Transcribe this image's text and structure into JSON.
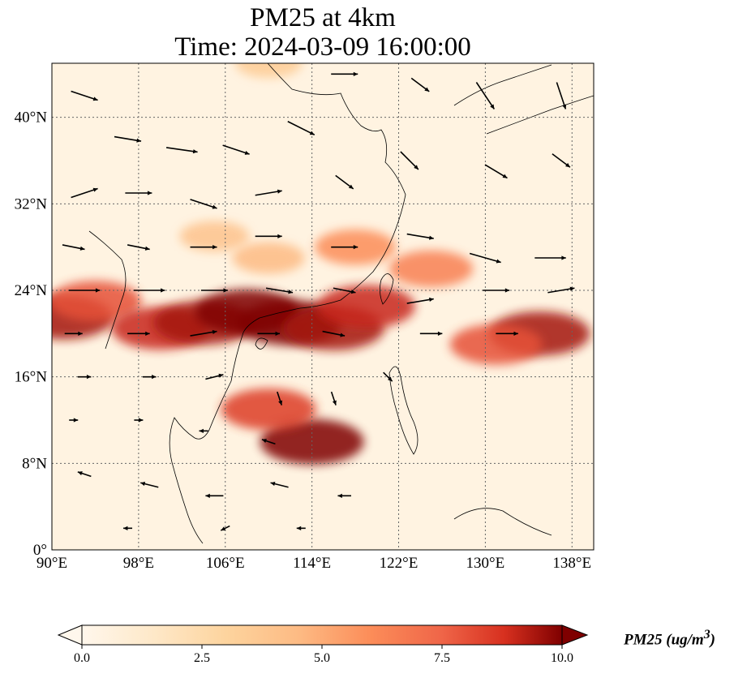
{
  "title": {
    "line1": "PM25 at 4km",
    "line2": "Time: 2024-03-09 16:00:00"
  },
  "map": {
    "lon_range": [
      90,
      140
    ],
    "lat_range": [
      0,
      45
    ],
    "gridlines": true,
    "lon_ticks": [
      {
        "value": 90,
        "label": "90°E"
      },
      {
        "value": 98,
        "label": "98°E"
      },
      {
        "value": 106,
        "label": "106°E"
      },
      {
        "value": 114,
        "label": "114°E"
      },
      {
        "value": 122,
        "label": "122°E"
      },
      {
        "value": 130,
        "label": "130°E"
      },
      {
        "value": 138,
        "label": "138°E"
      }
    ],
    "lat_ticks": [
      {
        "value": 0,
        "label": "0°"
      },
      {
        "value": 8,
        "label": "8°N"
      },
      {
        "value": 16,
        "label": "16°N"
      },
      {
        "value": 24,
        "label": "24°N"
      },
      {
        "value": 32,
        "label": "32°N"
      },
      {
        "value": 40,
        "label": "40°N"
      }
    ]
  },
  "colorbar": {
    "colormap": "OrRd",
    "range": [
      0,
      10
    ],
    "extend": "both",
    "orientation": "horizontal",
    "ticks": [
      {
        "value": 0,
        "label": "0.0"
      },
      {
        "value": 2.5,
        "label": "2.5"
      },
      {
        "value": 5,
        "label": "5.0"
      },
      {
        "value": 7.5,
        "label": "7.5"
      },
      {
        "value": 10,
        "label": "10.0"
      }
    ],
    "label_prefix": "PM25 (ug/m",
    "label_exponent": "3",
    "label_suffix": ")"
  },
  "colors": {
    "low": "#fff7ec",
    "mid_low": "#fdd49e",
    "mid": "#fc8d59",
    "high": "#d7301f",
    "max": "#7f0000",
    "grid": "#666666",
    "coast": "#000000",
    "wind": "#000000"
  },
  "chart_data": {
    "type": "heatmap",
    "variable": "PM25",
    "level": "4km",
    "time": "2024-03-09 16:00:00",
    "units": "ug/m3",
    "value_range": [
      0,
      10
    ],
    "plumes": [
      {
        "lon": 91,
        "lat": 21.5,
        "value": 9.5
      },
      {
        "lon": 94,
        "lat": 23,
        "value": 8.0
      },
      {
        "lon": 100,
        "lat": 20.5,
        "value": 9.0
      },
      {
        "lon": 104,
        "lat": 21,
        "value": 9.5
      },
      {
        "lon": 108,
        "lat": 22,
        "value": 10.0
      },
      {
        "lon": 112,
        "lat": 21,
        "value": 10.0
      },
      {
        "lon": 116,
        "lat": 20.5,
        "value": 9.5
      },
      {
        "lon": 119,
        "lat": 22.5,
        "value": 9.0
      },
      {
        "lon": 114,
        "lat": 10,
        "value": 10.0
      },
      {
        "lon": 110,
        "lat": 13,
        "value": 8.5
      },
      {
        "lon": 135,
        "lat": 20,
        "value": 9.5
      },
      {
        "lon": 131,
        "lat": 19,
        "value": 8.0
      },
      {
        "lon": 125,
        "lat": 26,
        "value": 6.5
      },
      {
        "lon": 118,
        "lat": 28,
        "value": 6.0
      },
      {
        "lon": 110,
        "lat": 27,
        "value": 4.5
      },
      {
        "lon": 105,
        "lat": 29,
        "value": 4.0
      },
      {
        "lon": 110,
        "lat": 45,
        "value": 3.5
      }
    ],
    "wind_vectors": [
      {
        "lon": 93,
        "lat": 42,
        "u": 3.0,
        "v": -1.0
      },
      {
        "lon": 97,
        "lat": 38,
        "u": 3.0,
        "v": -0.5
      },
      {
        "lon": 102,
        "lat": 37,
        "u": 3.5,
        "v": -0.5
      },
      {
        "lon": 107,
        "lat": 37,
        "u": 3.0,
        "v": -1.0
      },
      {
        "lon": 113,
        "lat": 39,
        "u": 3.0,
        "v": -1.5
      },
      {
        "lon": 117,
        "lat": 44,
        "u": 3.0,
        "v": 0.0
      },
      {
        "lon": 124,
        "lat": 43,
        "u": 2.0,
        "v": -1.5
      },
      {
        "lon": 130,
        "lat": 42,
        "u": 2.0,
        "v": -3.0
      },
      {
        "lon": 137,
        "lat": 42,
        "u": 1.0,
        "v": -3.0
      },
      {
        "lon": 93,
        "lat": 33,
        "u": 3.0,
        "v": 1.0
      },
      {
        "lon": 98,
        "lat": 33,
        "u": 3.0,
        "v": 0.0
      },
      {
        "lon": 104,
        "lat": 32,
        "u": 3.0,
        "v": -1.0
      },
      {
        "lon": 110,
        "lat": 33,
        "u": 3.0,
        "v": 0.5
      },
      {
        "lon": 117,
        "lat": 34,
        "u": 2.0,
        "v": -1.5
      },
      {
        "lon": 123,
        "lat": 36,
        "u": 2.0,
        "v": -2.0
      },
      {
        "lon": 131,
        "lat": 35,
        "u": 2.5,
        "v": -1.5
      },
      {
        "lon": 137,
        "lat": 36,
        "u": 2.0,
        "v": -1.5
      },
      {
        "lon": 92,
        "lat": 28,
        "u": 2.5,
        "v": -0.5
      },
      {
        "lon": 98,
        "lat": 28,
        "u": 2.5,
        "v": -0.5
      },
      {
        "lon": 104,
        "lat": 28,
        "u": 3.0,
        "v": 0.0
      },
      {
        "lon": 110,
        "lat": 29,
        "u": 3.0,
        "v": 0.0
      },
      {
        "lon": 117,
        "lat": 28,
        "u": 3.0,
        "v": 0.0
      },
      {
        "lon": 124,
        "lat": 29,
        "u": 3.0,
        "v": -0.5
      },
      {
        "lon": 130,
        "lat": 27,
        "u": 3.5,
        "v": -1.0
      },
      {
        "lon": 136,
        "lat": 27,
        "u": 3.5,
        "v": 0.0
      },
      {
        "lon": 93,
        "lat": 24,
        "u": 3.5,
        "v": 0.0
      },
      {
        "lon": 99,
        "lat": 24,
        "u": 3.5,
        "v": 0.0
      },
      {
        "lon": 105,
        "lat": 24,
        "u": 3.0,
        "v": 0.0
      },
      {
        "lon": 111,
        "lat": 24,
        "u": 3.0,
        "v": -0.5
      },
      {
        "lon": 117,
        "lat": 24,
        "u": 2.5,
        "v": -0.5
      },
      {
        "lon": 124,
        "lat": 23,
        "u": 3.0,
        "v": 0.5
      },
      {
        "lon": 131,
        "lat": 24,
        "u": 3.0,
        "v": 0.0
      },
      {
        "lon": 137,
        "lat": 24,
        "u": 3.0,
        "v": 0.5
      },
      {
        "lon": 92,
        "lat": 20,
        "u": 2.0,
        "v": 0.0
      },
      {
        "lon": 98,
        "lat": 20,
        "u": 2.5,
        "v": 0.0
      },
      {
        "lon": 104,
        "lat": 20,
        "u": 3.0,
        "v": 0.5
      },
      {
        "lon": 110,
        "lat": 20,
        "u": 2.5,
        "v": 0.0
      },
      {
        "lon": 116,
        "lat": 20,
        "u": 2.5,
        "v": -0.5
      },
      {
        "lon": 125,
        "lat": 20,
        "u": 2.5,
        "v": 0.0
      },
      {
        "lon": 132,
        "lat": 20,
        "u": 2.5,
        "v": 0.0
      },
      {
        "lon": 93,
        "lat": 16,
        "u": 1.5,
        "v": 0.0
      },
      {
        "lon": 99,
        "lat": 16,
        "u": 1.5,
        "v": 0.0
      },
      {
        "lon": 105,
        "lat": 16,
        "u": 2.0,
        "v": 0.5
      },
      {
        "lon": 111,
        "lat": 14,
        "u": 0.5,
        "v": -1.5
      },
      {
        "lon": 116,
        "lat": 14,
        "u": 0.5,
        "v": -1.5
      },
      {
        "lon": 121,
        "lat": 16,
        "u": 1.0,
        "v": -1.0
      },
      {
        "lon": 92,
        "lat": 12,
        "u": 1.0,
        "v": 0.0
      },
      {
        "lon": 98,
        "lat": 12,
        "u": 1.0,
        "v": 0.0
      },
      {
        "lon": 104,
        "lat": 11,
        "u": -1.0,
        "v": 0.0
      },
      {
        "lon": 110,
        "lat": 10,
        "u": -1.5,
        "v": 0.5
      },
      {
        "lon": 93,
        "lat": 7,
        "u": -1.5,
        "v": 0.5
      },
      {
        "lon": 99,
        "lat": 6,
        "u": -2.0,
        "v": 0.5
      },
      {
        "lon": 105,
        "lat": 5,
        "u": -2.0,
        "v": 0.0
      },
      {
        "lon": 111,
        "lat": 6,
        "u": -2.0,
        "v": 0.5
      },
      {
        "lon": 117,
        "lat": 5,
        "u": -1.5,
        "v": 0.0
      },
      {
        "lon": 97,
        "lat": 2,
        "u": -1.0,
        "v": 0.0
      },
      {
        "lon": 106,
        "lat": 2,
        "u": -1.0,
        "v": -0.5
      },
      {
        "lon": 113,
        "lat": 2,
        "u": -1.0,
        "v": 0.0
      }
    ]
  }
}
